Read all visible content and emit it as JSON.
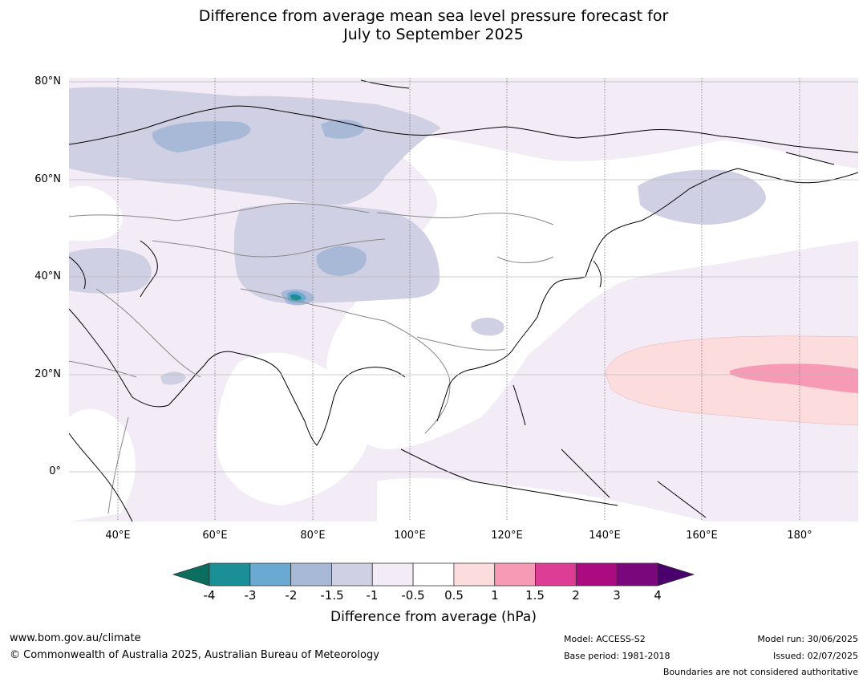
{
  "title": {
    "line1": "Difference from average mean sea level pressure forecast for",
    "line2": "July to September 2025"
  },
  "map": {
    "lat_labels": [
      "80°N",
      "60°N",
      "40°N",
      "20°N",
      "0°"
    ],
    "lon_labels": [
      "40°E",
      "60°E",
      "80°E",
      "100°E",
      "120°E",
      "140°E",
      "160°E",
      "180°"
    ],
    "land_color": "#ffffff",
    "coast_color": "#000000",
    "border_color": "#888888"
  },
  "colorbar": {
    "title": "Difference from average (hPa)",
    "ticks": [
      "-4",
      "-3",
      "-2",
      "-1.5",
      "-1",
      "-0.5",
      "0.5",
      "1",
      "1.5",
      "2",
      "3",
      "4"
    ],
    "colors": {
      "under": "#0b6e5e",
      "bins": [
        "#1b8f96",
        "#6aa9d2",
        "#a7b9d6",
        "#d0d0e4",
        "#f3ebf5",
        "#ffffff",
        "#fcdcdd",
        "#f79ab6",
        "#de3d96",
        "#ab0a80",
        "#7b077d"
      ],
      "over": "#4b016d"
    }
  },
  "footer": {
    "website": "www.bom.gov.au/climate",
    "copyright": "© Commonwealth of Australia 2025, Australian Bureau of Meteorology",
    "model": "Model: ACCESS-S2",
    "base_period": "Base period: 1981-2018",
    "model_run": "Model run: 30/06/2025",
    "issued": "Issued: 02/07/2025",
    "disclaimer": "Boundaries are not considered authoritative"
  }
}
